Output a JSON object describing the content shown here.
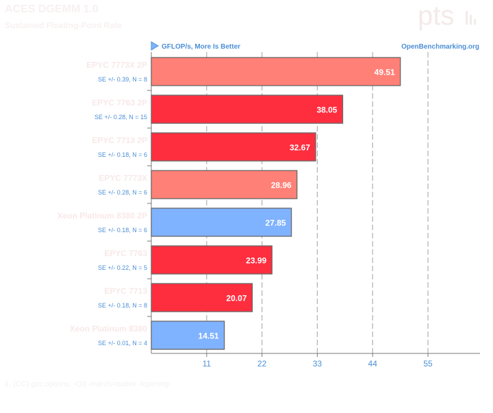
{
  "header": {
    "title": "ACES DGEMM 1.0",
    "subtitle": "Sustained Floating-Point Rate",
    "logo_text": "pts"
  },
  "footer": {
    "text": "1. (CC) gcc options: -O3 -march=native -fopenmp"
  },
  "colors": {
    "amd_dark": "#ff2e3f",
    "amd_light": "#ff8077",
    "intel": "#80b3ff",
    "bar_stroke": "#666666",
    "label_blue": "#4c8fd6",
    "faint_label": "#f8e8e8"
  },
  "chart_data": {
    "type": "bar",
    "orientation": "horizontal",
    "metric_label": "GFLOP/s, More Is Better",
    "source_label": "OpenBenchmarking.org",
    "xlim": [
      0,
      66
    ],
    "xticks": [
      11,
      22,
      33,
      44,
      55
    ],
    "grid": true,
    "bars": [
      {
        "name": "EPYC 7773X 2P",
        "value": 49.51,
        "value_label": "49.51",
        "se": "SE +/- 0.39, N = 8",
        "color": "#ff8077"
      },
      {
        "name": "EPYC 7763 2P",
        "value": 38.05,
        "value_label": "38.05",
        "se": "SE +/- 0.28, N = 15",
        "color": "#ff2e3f"
      },
      {
        "name": "EPYC 7713 2P",
        "value": 32.67,
        "value_label": "32.67",
        "se": "SE +/- 0.18, N = 6",
        "color": "#ff2e3f"
      },
      {
        "name": "EPYC 7773X",
        "value": 28.96,
        "value_label": "28.96",
        "se": "SE +/- 0.28, N = 6",
        "color": "#ff8077"
      },
      {
        "name": "Xeon Platinum 8380 2P",
        "value": 27.85,
        "value_label": "27.85",
        "se": "SE +/- 0.18, N = 6",
        "color": "#80b3ff"
      },
      {
        "name": "EPYC 7763",
        "value": 23.99,
        "value_label": "23.99",
        "se": "SE +/- 0.22, N = 5",
        "color": "#ff2e3f"
      },
      {
        "name": "EPYC 7713",
        "value": 20.07,
        "value_label": "20.07",
        "se": "SE +/- 0.18, N = 8",
        "color": "#ff2e3f"
      },
      {
        "name": "Xeon Platinum 8380",
        "value": 14.51,
        "value_label": "14.51",
        "se": "SE +/- 0.01, N = 4",
        "color": "#80b3ff"
      }
    ]
  }
}
